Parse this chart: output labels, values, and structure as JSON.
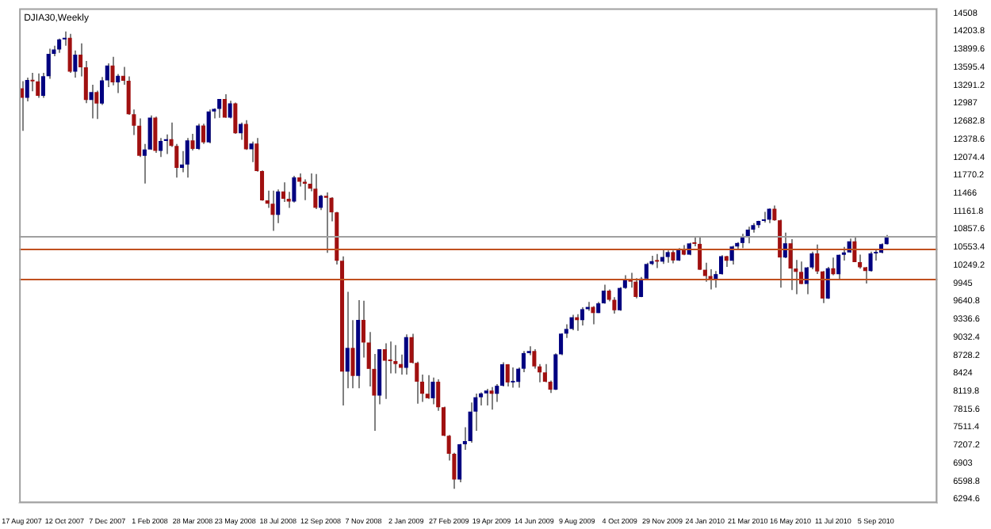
{
  "chart_data": {
    "type": "candlestick",
    "title": "DJIA30,Weekly",
    "categories": [
      "17 Aug 2007",
      null,
      null,
      null,
      null,
      null,
      null,
      null,
      "12 Oct 2007",
      null,
      null,
      null,
      null,
      null,
      null,
      null,
      "7 Dec 2007",
      null,
      null,
      null,
      null,
      null,
      null,
      null,
      "1 Feb 2008",
      null,
      null,
      null,
      null,
      null,
      null,
      null,
      "28 Mar 2008",
      null,
      null,
      null,
      null,
      null,
      null,
      null,
      "23 May 2008",
      null,
      null,
      null,
      null,
      null,
      null,
      null,
      "18 Jul 2008",
      null,
      null,
      null,
      null,
      null,
      null,
      null,
      "12 Sep 2008",
      null,
      null,
      null,
      null,
      null,
      null,
      null,
      "7 Nov 2008",
      null,
      null,
      null,
      null,
      null,
      null,
      null,
      "2 Jan 2009",
      null,
      null,
      null,
      null,
      null,
      null,
      null,
      "27 Feb 2009",
      null,
      null,
      null,
      null,
      null,
      null,
      null,
      "19 Apr 2009",
      null,
      null,
      null,
      null,
      null,
      null,
      null,
      "14 Jun 2009",
      null,
      null,
      null,
      null,
      null,
      null,
      null,
      "9 Aug 2009",
      null,
      null,
      null,
      null,
      null,
      null,
      null,
      "4 Oct 2009",
      null,
      null,
      null,
      null,
      null,
      null,
      null,
      "29 Nov 2009",
      null,
      null,
      null,
      null,
      null,
      null,
      null,
      "24 Jan 2010",
      null,
      null,
      null,
      null,
      null,
      null,
      null,
      "21 Mar 2010",
      null,
      null,
      null,
      null,
      null,
      null,
      null,
      "16 May 2010",
      null,
      null,
      null,
      null,
      null,
      null,
      null,
      "11 Jul 2010",
      null,
      null,
      null,
      null,
      null,
      null,
      null,
      "5 Sep 2010",
      null,
      null,
      null,
      null,
      null,
      null,
      null,
      null,
      null,
      null,
      null
    ],
    "ohlc": [
      [
        13240,
        13360,
        12520,
        13079
      ],
      [
        13079,
        13420,
        13020,
        13379
      ],
      [
        13379,
        13500,
        13190,
        13358
      ],
      [
        13358,
        13490,
        13080,
        13113
      ],
      [
        13113,
        13500,
        13080,
        13442
      ],
      [
        13442,
        13910,
        13400,
        13821
      ],
      [
        13821,
        13960,
        13780,
        13896
      ],
      [
        13896,
        14080,
        13840,
        14066
      ],
      [
        14066,
        14200,
        13960,
        14093
      ],
      [
        14093,
        14160,
        13500,
        13522
      ],
      [
        13522,
        13880,
        13420,
        13807
      ],
      [
        13807,
        14000,
        13440,
        13595
      ],
      [
        13595,
        13700,
        12990,
        13043
      ],
      [
        13043,
        13300,
        12730,
        13177
      ],
      [
        13177,
        13200,
        12720,
        12981
      ],
      [
        12981,
        13430,
        12960,
        13372
      ],
      [
        13372,
        13660,
        13260,
        13625
      ],
      [
        13625,
        13770,
        13290,
        13339
      ],
      [
        13339,
        13480,
        13160,
        13450
      ],
      [
        13450,
        13600,
        13300,
        13366
      ],
      [
        13366,
        13440,
        12790,
        12800
      ],
      [
        12800,
        12880,
        12450,
        12606
      ],
      [
        12606,
        12730,
        12080,
        12099
      ],
      [
        12099,
        12300,
        11630,
        12207
      ],
      [
        12207,
        12780,
        12200,
        12743
      ],
      [
        12743,
        12760,
        12150,
        12182
      ],
      [
        12182,
        12400,
        12080,
        12348
      ],
      [
        12348,
        12460,
        12130,
        12381
      ],
      [
        12381,
        12660,
        12250,
        12266
      ],
      [
        12266,
        12300,
        11730,
        11894
      ],
      [
        11894,
        12180,
        11820,
        11951
      ],
      [
        11951,
        12400,
        11730,
        12361
      ],
      [
        12361,
        12470,
        12190,
        12216
      ],
      [
        12216,
        12640,
        12200,
        12609
      ],
      [
        12609,
        12640,
        12300,
        12325
      ],
      [
        12325,
        12880,
        12310,
        12849
      ],
      [
        12849,
        12900,
        12730,
        12891
      ],
      [
        12891,
        13060,
        12740,
        13058
      ],
      [
        13058,
        13140,
        12740,
        12745
      ],
      [
        12745,
        13030,
        12730,
        12986
      ],
      [
        12986,
        13000,
        12470,
        12480
      ],
      [
        12480,
        12660,
        12370,
        12638
      ],
      [
        12638,
        12700,
        12200,
        12209
      ],
      [
        12209,
        12340,
        11990,
        12307
      ],
      [
        12307,
        12400,
        11830,
        11842
      ],
      [
        11842,
        11850,
        11340,
        11347
      ],
      [
        11347,
        11510,
        11220,
        11289
      ],
      [
        11289,
        11510,
        10830,
        11100
      ],
      [
        11100,
        11530,
        10960,
        11496
      ],
      [
        11496,
        11650,
        11320,
        11371
      ],
      [
        11371,
        11490,
        11220,
        11326
      ],
      [
        11326,
        11760,
        11310,
        11734
      ],
      [
        11734,
        11800,
        11580,
        11659
      ],
      [
        11659,
        11700,
        11350,
        11628
      ],
      [
        11628,
        11800,
        11500,
        11544
      ],
      [
        11544,
        11790,
        11200,
        11220
      ],
      [
        11220,
        11440,
        11180,
        11422
      ],
      [
        11422,
        11480,
        10460,
        11388
      ],
      [
        11388,
        11400,
        10990,
        11143
      ],
      [
        11143,
        11150,
        10260,
        10325
      ],
      [
        10325,
        10400,
        7880,
        8451
      ],
      [
        8451,
        9800,
        8170,
        8852
      ],
      [
        8852,
        9320,
        8170,
        8378
      ],
      [
        8378,
        9660,
        8170,
        9325
      ],
      [
        9325,
        9650,
        8690,
        8943
      ],
      [
        8943,
        9120,
        8200,
        8497
      ],
      [
        8497,
        8750,
        7450,
        8046
      ],
      [
        8046,
        8830,
        7900,
        8829
      ],
      [
        8829,
        8930,
        7990,
        8635
      ],
      [
        8635,
        8960,
        8420,
        8629
      ],
      [
        8629,
        8900,
        8420,
        8579
      ],
      [
        8579,
        8740,
        8400,
        8515
      ],
      [
        8515,
        9080,
        8400,
        9034
      ],
      [
        9034,
        9090,
        8590,
        8599
      ],
      [
        8599,
        8620,
        7910,
        8281
      ],
      [
        8281,
        8400,
        7940,
        8077
      ],
      [
        8077,
        8390,
        7990,
        8001
      ],
      [
        8001,
        8350,
        7900,
        8280
      ],
      [
        8280,
        8320,
        7790,
        7850
      ],
      [
        7850,
        7860,
        7360,
        7366
      ],
      [
        7366,
        7380,
        6950,
        7062
      ],
      [
        7062,
        7080,
        6470,
        6627
      ],
      [
        6627,
        7230,
        6580,
        7224
      ],
      [
        7224,
        7510,
        7130,
        7278
      ],
      [
        7278,
        7930,
        7250,
        7776
      ],
      [
        7776,
        8080,
        7450,
        8018
      ],
      [
        8018,
        8100,
        7880,
        8083
      ],
      [
        8083,
        8160,
        7880,
        8131
      ],
      [
        8131,
        8190,
        7810,
        8076
      ],
      [
        8076,
        8240,
        7940,
        8212
      ],
      [
        8212,
        8610,
        8200,
        8575
      ],
      [
        8575,
        8580,
        8200,
        8268
      ],
      [
        8268,
        8520,
        8180,
        8277
      ],
      [
        8277,
        8520,
        8180,
        8500
      ],
      [
        8500,
        8800,
        8440,
        8764
      ],
      [
        8764,
        8880,
        8730,
        8799
      ],
      [
        8799,
        8830,
        8500,
        8539
      ],
      [
        8539,
        8580,
        8270,
        8438
      ],
      [
        8438,
        8580,
        8270,
        8280
      ],
      [
        8280,
        8300,
        8090,
        8146
      ],
      [
        8146,
        8760,
        8140,
        8743
      ],
      [
        8743,
        9100,
        8730,
        9093
      ],
      [
        9093,
        9250,
        9020,
        9172
      ],
      [
        9172,
        9410,
        9150,
        9370
      ],
      [
        9370,
        9420,
        9140,
        9321
      ],
      [
        9321,
        9540,
        9230,
        9506
      ],
      [
        9506,
        9630,
        9480,
        9544
      ],
      [
        9544,
        9560,
        9250,
        9441
      ],
      [
        9441,
        9630,
        9440,
        9605
      ],
      [
        9605,
        9920,
        9600,
        9820
      ],
      [
        9820,
        9840,
        9640,
        9665
      ],
      [
        9665,
        9710,
        9430,
        9488
      ],
      [
        9488,
        9880,
        9480,
        9865
      ],
      [
        9865,
        10080,
        9850,
        9996
      ],
      [
        9996,
        10120,
        9870,
        9972
      ],
      [
        9972,
        10030,
        9690,
        9713
      ],
      [
        9713,
        10050,
        9710,
        10023
      ],
      [
        10023,
        10290,
        10010,
        10270
      ],
      [
        10270,
        10410,
        10250,
        10318
      ],
      [
        10318,
        10440,
        10200,
        10310
      ],
      [
        10310,
        10520,
        10270,
        10388
      ],
      [
        10388,
        10500,
        10290,
        10471
      ],
      [
        10471,
        10500,
        10280,
        10329
      ],
      [
        10329,
        10540,
        10320,
        10520
      ],
      [
        10520,
        10590,
        10420,
        10428
      ],
      [
        10428,
        10630,
        10420,
        10618
      ],
      [
        10618,
        10730,
        10570,
        10610
      ],
      [
        10610,
        10730,
        10170,
        10173
      ],
      [
        10173,
        10290,
        9970,
        10067
      ],
      [
        10067,
        10180,
        9840,
        10012
      ],
      [
        10012,
        10150,
        9870,
        10099
      ],
      [
        10099,
        10420,
        10090,
        10402
      ],
      [
        10402,
        10410,
        10220,
        10325
      ],
      [
        10325,
        10580,
        10260,
        10566
      ],
      [
        10566,
        10640,
        10520,
        10625
      ],
      [
        10625,
        10780,
        10540,
        10742
      ],
      [
        10742,
        10900,
        10620,
        10851
      ],
      [
        10851,
        10960,
        10800,
        10927
      ],
      [
        10927,
        11000,
        10880,
        10998
      ],
      [
        10998,
        11150,
        10970,
        11019
      ],
      [
        11019,
        11210,
        10960,
        11204
      ],
      [
        11204,
        11260,
        11000,
        11009
      ],
      [
        11009,
        11020,
        9870,
        10380
      ],
      [
        10380,
        10800,
        10370,
        10620
      ],
      [
        10620,
        10690,
        9830,
        10193
      ],
      [
        10193,
        10340,
        9760,
        10137
      ],
      [
        10137,
        10310,
        9930,
        9932
      ],
      [
        9932,
        10220,
        9760,
        10212
      ],
      [
        10212,
        10480,
        10180,
        10450
      ],
      [
        10450,
        10600,
        10100,
        10144
      ],
      [
        10144,
        10150,
        9610,
        9686
      ],
      [
        9686,
        10220,
        9680,
        10198
      ],
      [
        10198,
        10380,
        10080,
        10098
      ],
      [
        10098,
        10430,
        10000,
        10425
      ],
      [
        10425,
        10560,
        10330,
        10466
      ],
      [
        10466,
        10700,
        10460,
        10654
      ],
      [
        10654,
        10720,
        10300,
        10303
      ],
      [
        10303,
        10430,
        10190,
        10214
      ],
      [
        10214,
        10220,
        9940,
        10150
      ],
      [
        10150,
        10480,
        10140,
        10448
      ],
      [
        10448,
        10520,
        10330,
        10463
      ],
      [
        10463,
        10620,
        10450,
        10607
      ],
      [
        10607,
        10760,
        10600,
        10735
      ],
      null,
      null,
      null,
      null,
      null,
      null,
      null,
      null,
      null
    ],
    "colors": [
      "#a01010",
      "#000080",
      "#a01010",
      "#a01010",
      "#000080",
      "#000080",
      "#000080",
      "#000080",
      "#000080",
      "#a01010",
      "#000080",
      "#a01010",
      "#a01010",
      "#000080",
      "#a01010",
      "#000080",
      "#000080",
      "#a01010",
      "#000080",
      "#a01010",
      "#a01010",
      "#a01010",
      "#a01010",
      "#000080",
      "#000080",
      "#a01010",
      "#000080",
      "#000080",
      "#a01010",
      "#a01010",
      "#000080",
      "#000080",
      "#a01010",
      "#000080",
      "#a01010",
      "#000080",
      "#000080",
      "#000080",
      "#a01010",
      "#000080",
      "#a01010",
      "#000080",
      "#a01010",
      "#000080",
      "#a01010",
      "#a01010",
      "#a01010",
      "#a01010",
      "#000080",
      "#a01010",
      "#a01010",
      "#000080",
      "#a01010",
      "#a01010",
      "#a01010",
      "#a01010",
      "#000080",
      "#a01010",
      "#a01010",
      "#a01010",
      "#a01010",
      "#000080",
      "#a01010",
      "#000080",
      "#a01010",
      "#a01010",
      "#a01010",
      "#000080",
      "#a01010",
      "#a01010",
      "#a01010",
      "#a01010",
      "#000080",
      "#a01010",
      "#a01010",
      "#a01010",
      "#a01010",
      "#000080",
      "#a01010",
      "#a01010",
      "#a01010",
      "#a01010",
      "#000080",
      "#000080",
      "#000080",
      "#000080",
      "#000080",
      "#000080",
      "#a01010",
      "#000080",
      "#000080",
      "#a01010",
      "#000080",
      "#000080",
      "#000080",
      "#000080",
      "#a01010",
      "#a01010",
      "#a01010",
      "#a01010",
      "#000080",
      "#000080",
      "#000080",
      "#000080",
      "#a01010",
      "#000080",
      "#000080",
      "#a01010",
      "#000080",
      "#000080",
      "#a01010",
      "#a01010",
      "#000080",
      "#000080",
      "#a01010",
      "#a01010",
      "#000080",
      "#000080",
      "#000080",
      "#a01010",
      "#000080",
      "#000080",
      "#a01010",
      "#000080",
      "#a01010",
      "#000080",
      "#a01010",
      "#a01010",
      "#a01010",
      "#a01010",
      "#000080",
      "#000080",
      "#a01010",
      "#000080",
      "#000080",
      "#000080",
      "#000080",
      "#000080",
      "#000080",
      "#000080",
      "#000080",
      "#a01010",
      "#a01010",
      "#000080",
      "#a01010",
      "#a01010",
      "#a01010",
      "#000080",
      "#000080",
      "#a01010",
      "#a01010",
      "#000080",
      "#a01010",
      "#000080",
      "#000080",
      "#000080",
      "#a01010",
      "#a01010",
      "#a01010",
      "#000080",
      "#000080",
      "#000080",
      "#000080",
      null,
      null,
      null,
      null,
      null,
      null,
      null,
      null,
      null
    ],
    "ylim": [
      6230,
      14590
    ],
    "yticks": [
      6294.6,
      6598.8,
      6903.0,
      7207.2,
      7511.4,
      7815.6,
      8119.8,
      8424.0,
      8728.2,
      9032.4,
      9336.6,
      9640.8,
      9945.0,
      10249.2,
      10553.4,
      10857.6,
      11161.8,
      11466.0,
      11770.2,
      12074.4,
      12378.6,
      12682.8,
      12987.0,
      13291.2,
      13595.4,
      13899.6,
      14203.8,
      14508.0
    ],
    "ref_lines": [
      {
        "axis": "y",
        "value": 10735,
        "color": "#a0a0a0"
      },
      {
        "axis": "y",
        "value": 10527,
        "color": "#c0501f"
      },
      {
        "axis": "y",
        "value": 10018,
        "color": "#c0501f"
      }
    ]
  }
}
